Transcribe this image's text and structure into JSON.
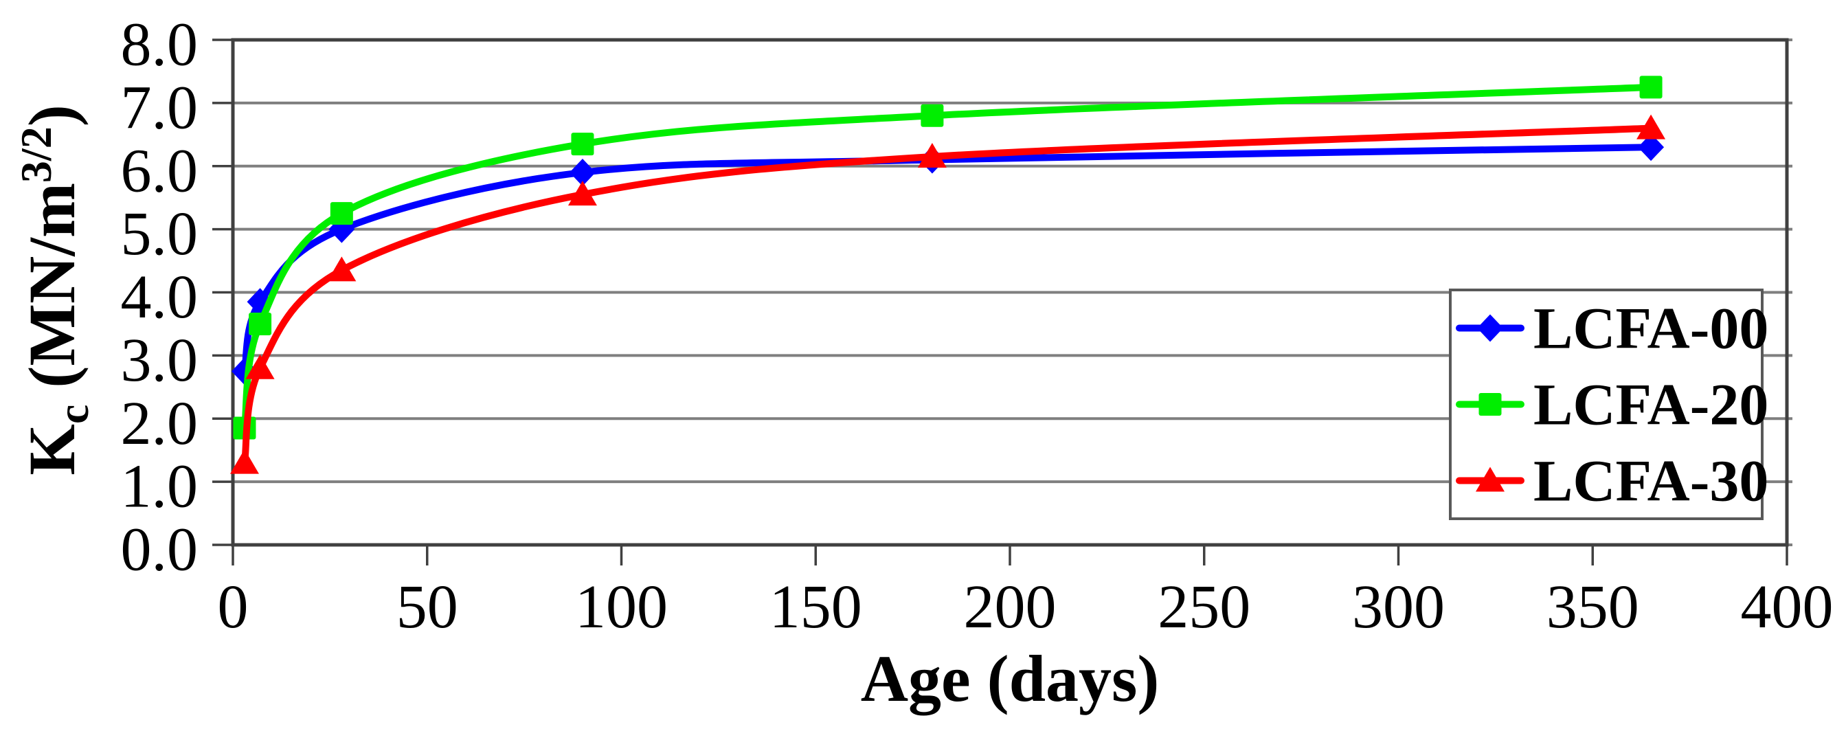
{
  "figure": {
    "background": "#FFFFFF",
    "text_color": "#000000",
    "grid_color": "#7F7F7F",
    "frame_color": "#404040"
  },
  "chart_data": {
    "type": "line",
    "smoothed": true,
    "title": "",
    "xlabel": "Age (days)",
    "ylabel_plain": "Kc (MN/m3/2)",
    "ylabel_parts": {
      "base": "K",
      "sub": "c",
      "mid": " (MN/m",
      "sup": "3/2",
      "end": ")"
    },
    "xlim": [
      0,
      400
    ],
    "ylim": [
      0.0,
      8.0
    ],
    "xticks": [
      0,
      50,
      100,
      150,
      200,
      250,
      300,
      350,
      400
    ],
    "ytick_labels": [
      "0.0",
      "1.0",
      "2.0",
      "3.0",
      "4.0",
      "5.0",
      "6.0",
      "7.0",
      "8.0"
    ],
    "grid": "horizontal-only",
    "legend_position": "middle-right-inside",
    "x": [
      3,
      7,
      28,
      90,
      180,
      365
    ],
    "series": [
      {
        "name": "LCFA-00",
        "color": "#0000FF",
        "marker": "diamond",
        "values": [
          2.75,
          3.85,
          5.0,
          5.9,
          6.1,
          6.3
        ]
      },
      {
        "name": "LCFA-20",
        "color": "#00EE00",
        "marker": "square",
        "values": [
          1.85,
          3.5,
          5.25,
          6.35,
          6.8,
          7.25
        ]
      },
      {
        "name": "LCFA-30",
        "color": "#FF0000",
        "marker": "triangle",
        "values": [
          1.3,
          2.8,
          4.35,
          5.55,
          6.15,
          6.6
        ]
      }
    ]
  }
}
